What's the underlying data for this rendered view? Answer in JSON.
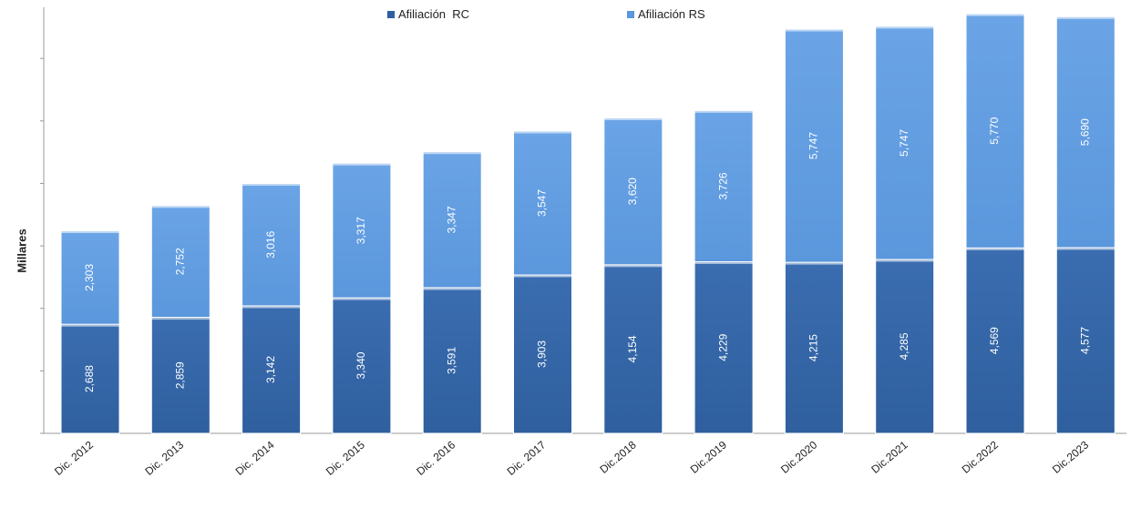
{
  "chart_data": {
    "type": "bar",
    "stacked": true,
    "ylabel": "Millares",
    "categories": [
      "Dic. 2012",
      "Dic. 2013",
      "Dic. 2014",
      "Dic. 2015",
      "Dic. 2016",
      "Dic. 2017",
      "Dic.2018",
      "Dic.2019",
      "Dic.2020",
      "Dic.2021",
      "Dic.2022",
      "Dic.2023"
    ],
    "series": [
      {
        "name": "Afiliación  RC",
        "color": "#2f5f9e",
        "values": [
          2688,
          2859,
          3142,
          3340,
          3591,
          3903,
          4154,
          4229,
          4215,
          4285,
          4569,
          4577
        ],
        "labels": [
          "2,688",
          "2,859",
          "3,142",
          "3,340",
          "3,591",
          "3,903",
          "4,154",
          "4,229",
          "4,215",
          "4,285",
          "4,569",
          "4,577"
        ]
      },
      {
        "name": "Afiliación RS",
        "color": "#5b97dc",
        "values": [
          2303,
          2752,
          3016,
          3317,
          3347,
          3547,
          3620,
          3726,
          5747,
          5747,
          5770,
          5690
        ],
        "labels": [
          "2,303",
          "2,752",
          "3,016",
          "3,317",
          "3,347",
          "3,547",
          "3,620",
          "3,726",
          "5,747",
          "5,747",
          "5,770",
          "5,690"
        ]
      }
    ],
    "ylim": [
      0,
      10500
    ],
    "legend": "top-center",
    "grid": false
  }
}
